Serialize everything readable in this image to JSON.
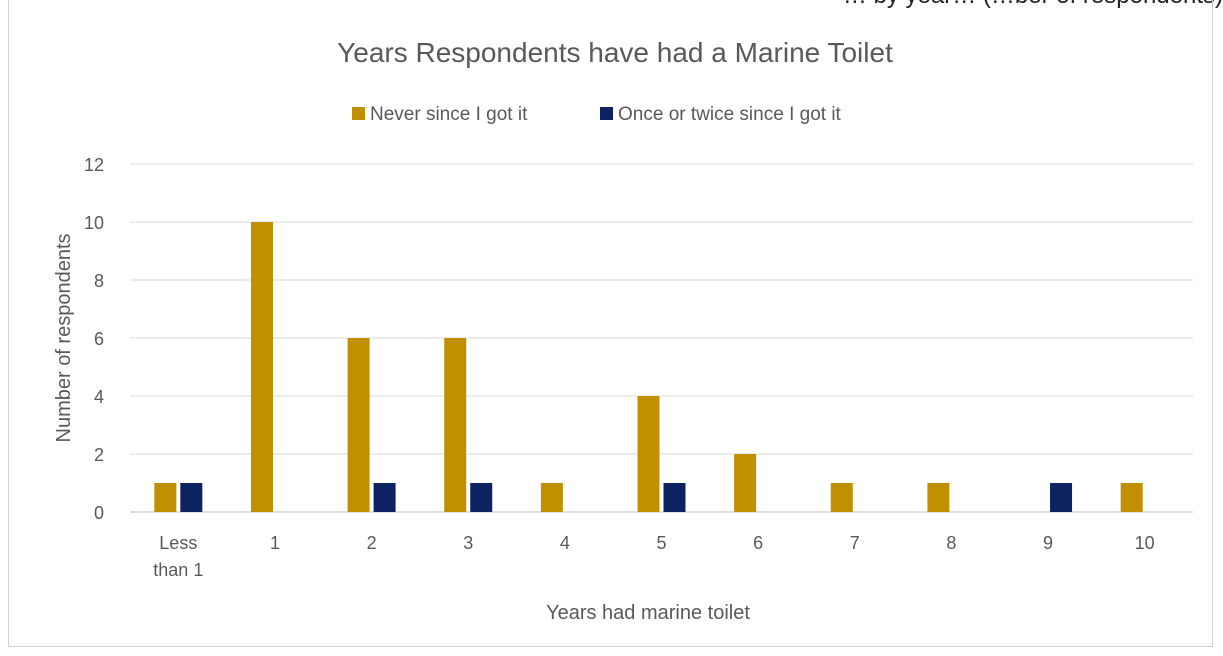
{
  "cut_text": "… by year… (…ber of respondents)",
  "chart_data": {
    "type": "bar",
    "title": "Years Respondents have had a Marine Toilet",
    "xlabel": "Years had marine toilet",
    "ylabel": "Number of respondents",
    "ylim": [
      0,
      12
    ],
    "yticks": [
      0,
      2,
      4,
      6,
      8,
      10,
      12
    ],
    "grid": true,
    "legend_position": "top",
    "categories": [
      "Less than 1",
      "1",
      "2",
      "3",
      "4",
      "5",
      "6",
      "7",
      "8",
      "9",
      "10"
    ],
    "series": [
      {
        "name": "Never since I got it",
        "color": "#C09000",
        "values": [
          1,
          10,
          6,
          6,
          1,
          4,
          2,
          1,
          1,
          0,
          1
        ]
      },
      {
        "name": "Once or twice since I got it",
        "color": "#0D2260",
        "values": [
          1,
          0,
          1,
          1,
          0,
          1,
          0,
          0,
          0,
          1,
          0
        ]
      }
    ]
  }
}
